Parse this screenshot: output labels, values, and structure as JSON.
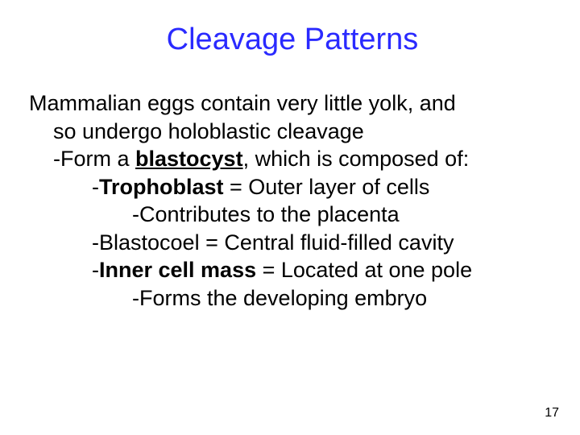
{
  "slide": {
    "title": "Cleavage Patterns",
    "title_color": "#2a2aff",
    "body_color": "#000000",
    "pagenum_color": "#000000",
    "line1a": "Mammalian eggs contain very little yolk, and",
    "line1b": "so undergo holoblastic cleavage",
    "line2_pre": "-Form a ",
    "line2_term": "blastocyst",
    "line2_post": ", which is composed of:",
    "line3_pre": "-",
    "line3_term": "Trophoblast",
    "line3_post": " = Outer layer of cells",
    "line4": "-Contributes to the placenta",
    "line5": "-Blastocoel = Central fluid-filled cavity",
    "line6_pre": "-",
    "line6_term": "Inner cell mass",
    "line6_post": " = Located at one pole",
    "line7": "-Forms the developing embryo",
    "page_number": "17"
  },
  "style": {
    "title_fontsize": 38,
    "body_fontsize": 27,
    "pagenum_fontsize": 16,
    "background": "#ffffff"
  }
}
